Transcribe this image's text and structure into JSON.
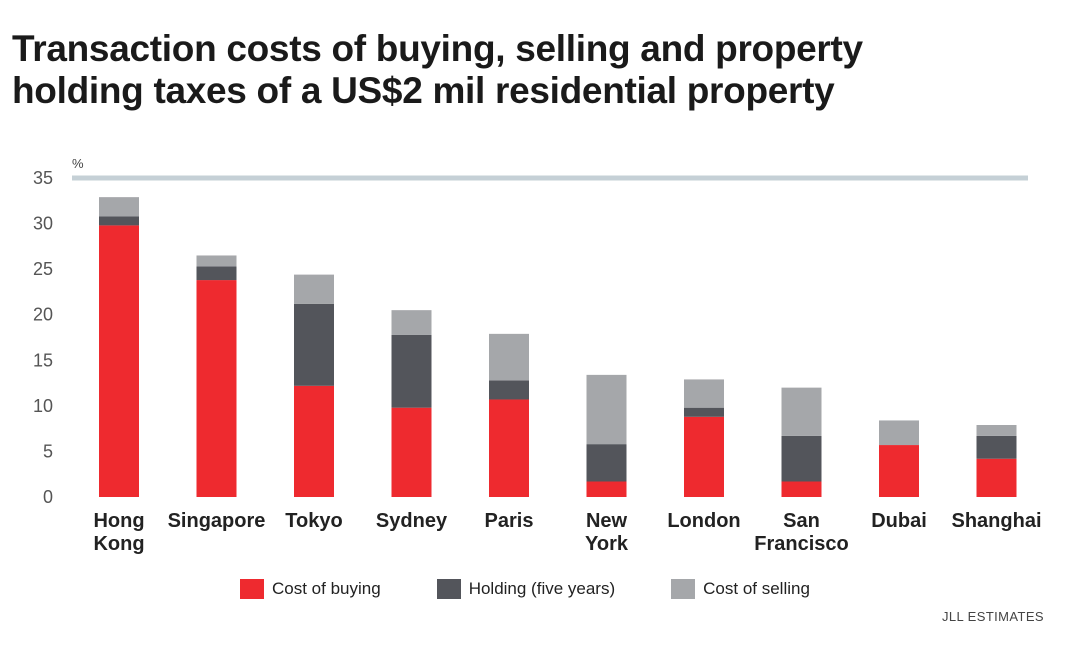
{
  "title_lines": [
    "Transaction costs of buying, selling and property",
    "holding taxes of a US$2 mil residential property"
  ],
  "source": "JLL ESTIMATES",
  "colors": {
    "buying": "#ee2a2f",
    "holding": "#53555b",
    "selling": "#a5a7aa",
    "top_rule": "#c5d0d6"
  },
  "chart_data": {
    "type": "bar",
    "stacked": true,
    "unit_label": "%",
    "ylim": [
      0,
      35
    ],
    "yticks": [
      0,
      5,
      10,
      15,
      20,
      25,
      30,
      35
    ],
    "categories": [
      [
        "Hong",
        "Kong"
      ],
      [
        "Singapore"
      ],
      [
        "Tokyo"
      ],
      [
        "Sydney"
      ],
      [
        "Paris"
      ],
      [
        "New",
        "York"
      ],
      [
        "London"
      ],
      [
        "San",
        "Francisco"
      ],
      [
        "Dubai"
      ],
      [
        "Shanghai"
      ]
    ],
    "series": [
      {
        "name": "Cost of buying",
        "color": "#ee2a2f",
        "values": [
          29.8,
          23.8,
          12.2,
          9.8,
          10.7,
          1.7,
          8.8,
          1.7,
          5.7,
          4.2
        ]
      },
      {
        "name": "Holding (five years)",
        "color": "#53555b",
        "values": [
          1.0,
          1.5,
          9.0,
          8.0,
          2.1,
          4.1,
          1.0,
          5.0,
          0.0,
          2.5
        ]
      },
      {
        "name": "Cost of selling",
        "color": "#a5a7aa",
        "values": [
          2.1,
          1.2,
          3.2,
          2.7,
          5.1,
          7.6,
          3.1,
          5.3,
          2.7,
          1.2
        ]
      }
    ],
    "legend_position": "bottom",
    "grid": false
  }
}
